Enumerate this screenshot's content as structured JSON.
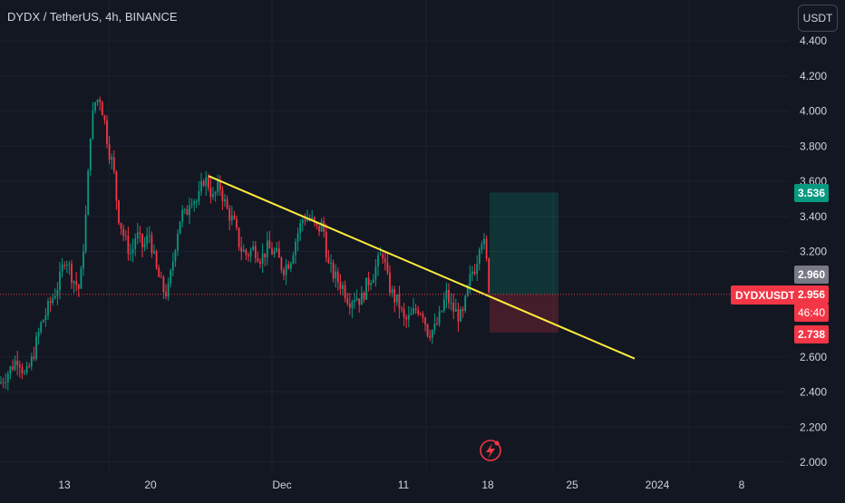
{
  "header": {
    "symbol_title": "DYDX / TetherUS, 4h, BINANCE",
    "currency_button": "USDT"
  },
  "price_axis": {
    "tick_labels": [
      "4.400",
      "4.200",
      "4.000",
      "3.800",
      "3.600",
      "3.400",
      "3.200",
      "2.600",
      "2.400",
      "2.200",
      "2.000"
    ],
    "tick_values": [
      4.4,
      4.2,
      4.0,
      3.8,
      3.6,
      3.4,
      3.2,
      2.6,
      2.4,
      2.2,
      2.0
    ],
    "target_price": "3.536",
    "gray_price": "2.960",
    "last_price": "2.956",
    "countdown": "46:40",
    "stop_price": "2.738",
    "symbol_tag": "DYDXUSDT"
  },
  "time_axis": {
    "labels": [
      "13",
      "20",
      "Dec",
      "11",
      "18",
      "25",
      "2024",
      "8"
    ]
  },
  "colors": {
    "background": "#131722",
    "up_candle": "#089981",
    "down_candle": "#f23645",
    "trendline": "#ffeb3b",
    "target_zone": "rgba(8,153,129,0.22)",
    "stop_zone": "rgba(242,54,69,0.22)",
    "gray_tag": "#787b86",
    "green_tag": "#089981",
    "red_tag": "#f23645"
  },
  "chart_data": {
    "type": "candlestick",
    "symbol": "DYDX / TetherUS",
    "interval": "4h",
    "exchange": "BINANCE",
    "ylim": [
      2.0,
      4.4
    ],
    "x_tick_labels": [
      "13",
      "20",
      "Dec",
      "11",
      "18",
      "25",
      "2024",
      "8"
    ],
    "price_path": [
      [
        0,
        2.45
      ],
      [
        10,
        2.52
      ],
      [
        20,
        2.6
      ],
      [
        28,
        2.48
      ],
      [
        35,
        2.58
      ],
      [
        45,
        2.78
      ],
      [
        55,
        2.9
      ],
      [
        65,
        3.02
      ],
      [
        72,
        3.18
      ],
      [
        80,
        3.05
      ],
      [
        88,
        2.98
      ],
      [
        95,
        3.42
      ],
      [
        100,
        3.9
      ],
      [
        105,
        4.05
      ],
      [
        110,
        4.08
      ],
      [
        115,
        3.95
      ],
      [
        120,
        3.78
      ],
      [
        125,
        3.68
      ],
      [
        130,
        3.42
      ],
      [
        138,
        3.26
      ],
      [
        145,
        3.18
      ],
      [
        150,
        3.3
      ],
      [
        158,
        3.22
      ],
      [
        165,
        3.3
      ],
      [
        172,
        3.1
      ],
      [
        180,
        2.98
      ],
      [
        185,
        2.96
      ],
      [
        190,
        3.12
      ],
      [
        195,
        3.3
      ],
      [
        200,
        3.42
      ],
      [
        205,
        3.4
      ],
      [
        210,
        3.52
      ],
      [
        218,
        3.48
      ],
      [
        225,
        3.62
      ],
      [
        230,
        3.58
      ],
      [
        235,
        3.5
      ],
      [
        242,
        3.58
      ],
      [
        250,
        3.44
      ],
      [
        258,
        3.36
      ],
      [
        265,
        3.22
      ],
      [
        272,
        3.18
      ],
      [
        280,
        3.22
      ],
      [
        288,
        3.16
      ],
      [
        295,
        3.22
      ],
      [
        305,
        3.18
      ],
      [
        312,
        3.1
      ],
      [
        320,
        3.15
      ],
      [
        328,
        3.3
      ],
      [
        335,
        3.4
      ],
      [
        343,
        3.38
      ],
      [
        350,
        3.32
      ],
      [
        356,
        3.36
      ],
      [
        362,
        3.12
      ],
      [
        370,
        3.05
      ],
      [
        378,
        3.0
      ],
      [
        385,
        2.92
      ],
      [
        392,
        2.95
      ],
      [
        398,
        2.92
      ],
      [
        405,
        3.02
      ],
      [
        412,
        3.08
      ],
      [
        418,
        3.15
      ],
      [
        422,
        3.2
      ],
      [
        428,
        3.02
      ],
      [
        434,
        2.94
      ],
      [
        440,
        2.9
      ],
      [
        446,
        2.8
      ],
      [
        452,
        2.82
      ],
      [
        460,
        2.88
      ],
      [
        466,
        2.86
      ],
      [
        472,
        2.74
      ],
      [
        480,
        2.76
      ],
      [
        486,
        2.84
      ],
      [
        492,
        2.96
      ],
      [
        498,
        2.88
      ],
      [
        505,
        2.84
      ],
      [
        510,
        2.82
      ],
      [
        515,
        2.96
      ],
      [
        520,
        3.08
      ],
      [
        525,
        3.12
      ],
      [
        530,
        3.3
      ],
      [
        535,
        3.22
      ],
      [
        540,
        2.96
      ]
    ],
    "trendline": {
      "start": [
        230,
        3.63
      ],
      "end": [
        700,
        2.59
      ]
    },
    "long_position": {
      "entry": 2.956,
      "target": 3.536,
      "stop": 2.738,
      "x_range": [
        540,
        616
      ]
    },
    "last_price": 2.956
  }
}
